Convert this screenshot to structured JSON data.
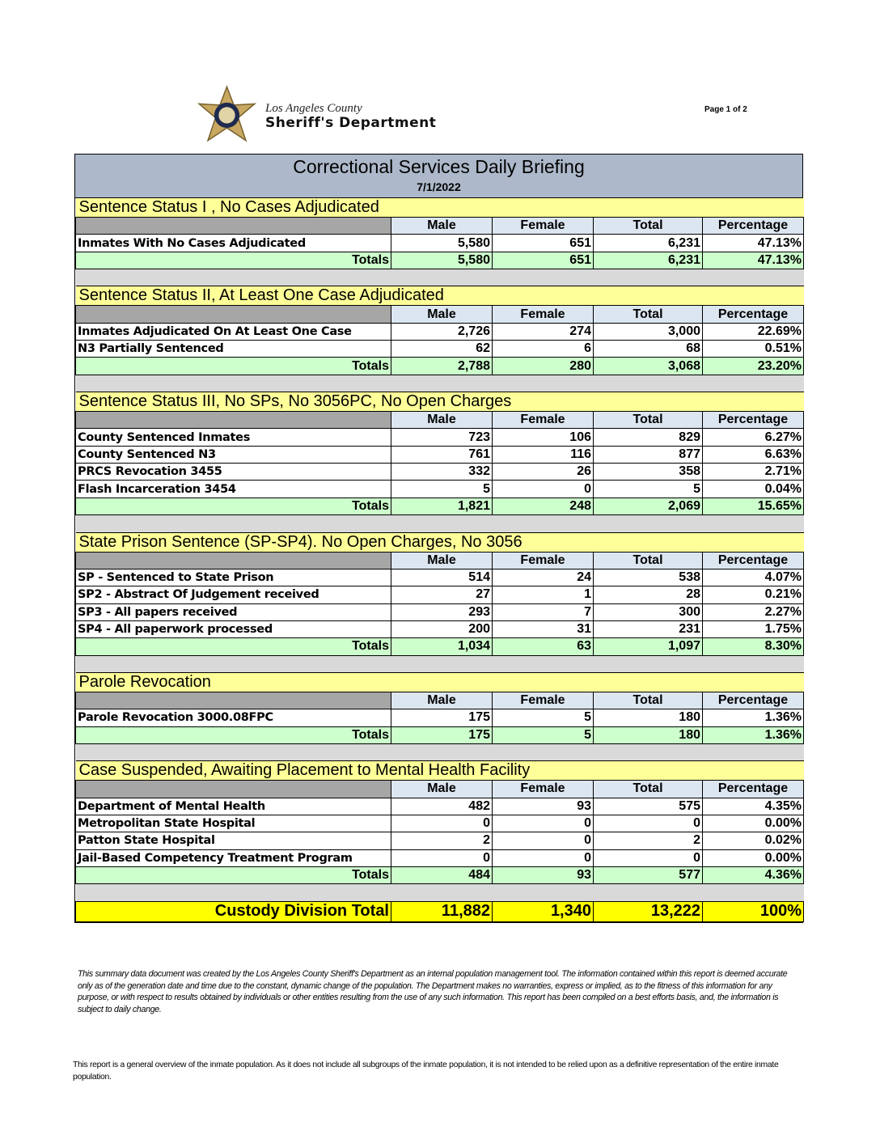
{
  "header": {
    "org_line1": "Los Angeles County",
    "org_line2": "Sheriff's Department",
    "page": "Page 1 of 2"
  },
  "report": {
    "title": "Correctional Services Daily Briefing",
    "date": "7/1/2022"
  },
  "columns": [
    "Male",
    "Female",
    "Total",
    "Percentage"
  ],
  "totals_label": "Totals",
  "sections": [
    {
      "title": "Sentence Status I , No Cases Adjudicated",
      "rows": [
        [
          "Inmates With No Cases Adjudicated",
          "5,580",
          "651",
          "6,231",
          "47.13%"
        ]
      ],
      "totals": [
        "5,580",
        "651",
        "6,231",
        "47.13%"
      ]
    },
    {
      "title": "Sentence Status II, At Least One Case Adjudicated",
      "rows": [
        [
          "Inmates Adjudicated On At Least One Case",
          "2,726",
          "274",
          "3,000",
          "22.69%"
        ],
        [
          "N3 Partially Sentenced",
          "62",
          "6",
          "68",
          "0.51%"
        ]
      ],
      "totals": [
        "2,788",
        "280",
        "3,068",
        "23.20%"
      ]
    },
    {
      "title": "Sentence Status III, No SPs, No 3056PC, No Open Charges",
      "rows": [
        [
          "County Sentenced Inmates",
          "723",
          "106",
          "829",
          "6.27%"
        ],
        [
          "County Sentenced N3",
          "761",
          "116",
          "877",
          "6.63%"
        ],
        [
          "PRCS Revocation 3455",
          "332",
          "26",
          "358",
          "2.71%"
        ],
        [
          "Flash Incarceration 3454",
          "5",
          "0",
          "5",
          "0.04%"
        ]
      ],
      "totals": [
        "1,821",
        "248",
        "2,069",
        "15.65%"
      ]
    },
    {
      "title": "State Prison Sentence (SP-SP4). No Open Charges, No 3056",
      "rows": [
        [
          "SP - Sentenced to State Prison",
          "514",
          "24",
          "538",
          "4.07%"
        ],
        [
          "SP2 - Abstract Of Judgement received",
          "27",
          "1",
          "28",
          "0.21%"
        ],
        [
          "SP3 - All papers received",
          "293",
          "7",
          "300",
          "2.27%"
        ],
        [
          "SP4 - All paperwork processed",
          "200",
          "31",
          "231",
          "1.75%"
        ]
      ],
      "totals": [
        "1,034",
        "63",
        "1,097",
        "8.30%"
      ]
    },
    {
      "title": "Parole Revocation",
      "rows": [
        [
          "Parole Revocation 3000.08FPC",
          "175",
          "5",
          "180",
          "1.36%"
        ]
      ],
      "totals": [
        "175",
        "5",
        "180",
        "1.36%"
      ]
    },
    {
      "title": "Case Suspended, Awaiting Placement to Mental Health Facility",
      "rows": [
        [
          "Department of Mental Health",
          "482",
          "93",
          "575",
          "4.35%"
        ],
        [
          "Metropolitan State Hospital",
          "0",
          "0",
          "0",
          "0.00%"
        ],
        [
          "Patton State Hospital",
          "2",
          "0",
          "2",
          "0.02%"
        ],
        [
          "Jail-Based Competency Treatment Program",
          "0",
          "0",
          "0",
          "0.00%"
        ]
      ],
      "totals": [
        "484",
        "93",
        "577",
        "4.36%"
      ]
    }
  ],
  "grand_total": {
    "label": "Custody Division Total",
    "values": [
      "11,882",
      "1,340",
      "13,222",
      "100%"
    ]
  },
  "disclaimer": "This summary data document was created by the Los Angeles County Sheriff's Department as an internal population management tool.  The information contained within this report is deemed accurate only as of the generation date and time due to the constant, dynamic change of the population.  The Department makes no warranties, express or implied, as to the fitness of this information for any purpose, or with respect to results obtained by individuals or other entities resulting from the use of any such information.  This report has been compiled on a best efforts basis, and, the information is subject to daily change.",
  "note": "This report is a general overview of the inmate population.  As it does not include all subgroups of the inmate population, it is not intended to be relied upon as a definitive representation of the entire inmate population."
}
